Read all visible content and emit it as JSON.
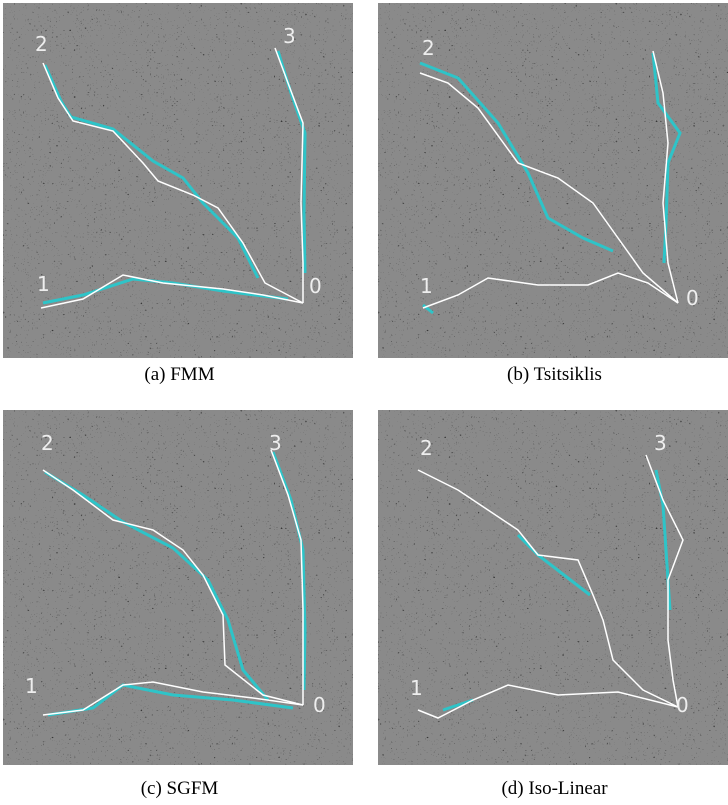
{
  "panels": [
    {
      "caption": "(a) FMM",
      "labels": [
        "2",
        "3",
        "1",
        "0"
      ]
    },
    {
      "caption": "(b) Tsitsiklis",
      "labels": [
        "2",
        "1",
        "0"
      ]
    },
    {
      "caption": "(c) SGFM",
      "labels": [
        "2",
        "3",
        "1",
        "0"
      ]
    },
    {
      "caption": "(d) Iso-Linear",
      "labels": [
        "2",
        "3",
        "1",
        "0"
      ]
    }
  ]
}
